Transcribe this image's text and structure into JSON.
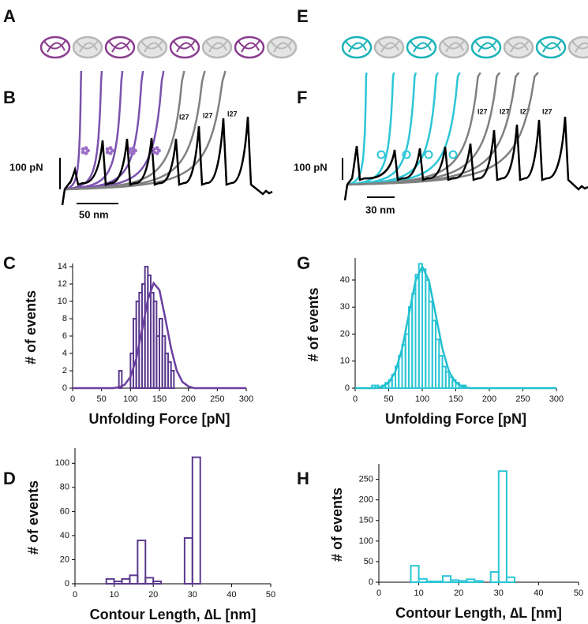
{
  "panel_letters": [
    "A",
    "B",
    "C",
    "D",
    "E",
    "F",
    "G",
    "H"
  ],
  "panel_b": {
    "force_scale": "100 pN",
    "length_scale": "50 nm",
    "domain_labels": [
      "I27",
      "I27",
      "I27"
    ]
  },
  "panel_f": {
    "force_scale": "100 pN",
    "length_scale": "30 nm",
    "domain_labels": [
      "I27",
      "I27",
      "I27",
      "I27"
    ]
  },
  "chart_data": [
    {
      "type": "histogram",
      "xlabel": "Unfolding Force [pN]",
      "ylabel": "# of events",
      "color": "#5b3a8e",
      "bins": [
        80,
        85,
        90,
        95,
        100,
        105,
        110,
        115,
        120,
        125,
        130,
        135,
        140,
        145,
        150,
        155,
        160,
        165,
        170,
        175,
        180
      ],
      "counts": [
        2,
        0,
        0,
        0,
        4,
        8,
        10,
        11,
        12,
        14,
        13,
        11,
        10,
        6,
        8,
        6,
        4,
        3,
        2,
        0
      ],
      "fit": {
        "color": "#6b3fa0",
        "x": [
          0,
          70,
          80,
          90,
          100,
          110,
          120,
          130,
          140,
          150,
          160,
          170,
          180,
          190,
          200,
          210,
          300
        ],
        "values": [
          0,
          0,
          0.1,
          0.4,
          1.3,
          3.4,
          6.7,
          10.2,
          12.1,
          11.3,
          8.1,
          4.6,
          2.0,
          0.7,
          0.2,
          0,
          0
        ]
      },
      "xlim": [
        0,
        300
      ],
      "ylim": [
        0,
        14
      ],
      "xticks": [
        0,
        50,
        100,
        150,
        200,
        250,
        300
      ],
      "yticks": [
        0,
        2,
        4,
        6,
        8,
        10,
        12,
        14
      ]
    },
    {
      "type": "histogram",
      "xlabel": "Contour Length, ∆L  [nm]",
      "ylabel": "# of events",
      "color": "#5b3a8e",
      "bins": [
        8,
        10,
        12,
        14,
        16,
        18,
        20,
        22,
        24,
        26,
        28,
        30,
        32
      ],
      "counts": [
        4,
        2,
        4,
        7,
        36,
        5,
        2,
        0,
        0,
        0,
        38,
        105
      ],
      "xlim": [
        0,
        50
      ],
      "ylim": [
        0,
        110
      ],
      "xticks": [
        0,
        10,
        20,
        30,
        40,
        50
      ],
      "yticks": [
        0,
        20,
        40,
        60,
        80,
        100
      ]
    },
    {
      "type": "histogram",
      "xlabel": "Unfolding Force [pN]",
      "ylabel": "# of events",
      "color": "#2cc6d6",
      "bins": [
        25,
        30,
        35,
        40,
        45,
        50,
        55,
        60,
        65,
        70,
        75,
        80,
        85,
        90,
        95,
        100,
        105,
        110,
        115,
        120,
        125,
        130,
        135,
        140,
        145,
        150,
        155,
        160,
        165
      ],
      "counts": [
        1,
        1,
        0,
        1,
        2,
        3,
        5,
        8,
        12,
        16,
        20,
        30,
        35,
        42,
        46,
        44,
        40,
        32,
        25,
        18,
        12,
        8,
        6,
        4,
        3,
        2,
        1,
        1
      ],
      "fit": {
        "color": "#22c0d0",
        "x": [
          0,
          30,
          40,
          50,
          60,
          70,
          80,
          90,
          100,
          110,
          120,
          130,
          140,
          150,
          160,
          170,
          300
        ],
        "values": [
          0,
          0,
          0.5,
          2.0,
          6.1,
          14.6,
          27.3,
          39.7,
          45,
          39.7,
          27.3,
          14.6,
          6.1,
          2.0,
          0.5,
          0,
          0
        ]
      },
      "xlim": [
        0,
        300
      ],
      "ylim": [
        0,
        47
      ],
      "xticks": [
        0,
        50,
        100,
        150,
        200,
        250,
        300
      ],
      "yticks": [
        0,
        10,
        20,
        30,
        40
      ]
    },
    {
      "type": "histogram",
      "xlabel": "Contour Length, ∆L  [nm]",
      "ylabel": "# of events",
      "color": "#2cc6d6",
      "bins": [
        8,
        10,
        12,
        14,
        16,
        18,
        20,
        22,
        24,
        26,
        28,
        30,
        32,
        34
      ],
      "counts": [
        40,
        8,
        2,
        2,
        15,
        5,
        3,
        7,
        3,
        0,
        25,
        270,
        12
      ],
      "xlim": [
        0,
        50
      ],
      "ylim": [
        0,
        280
      ],
      "xticks": [
        0,
        10,
        20,
        30,
        40,
        50
      ],
      "yticks": [
        0,
        50,
        100,
        150,
        200,
        250
      ]
    }
  ]
}
